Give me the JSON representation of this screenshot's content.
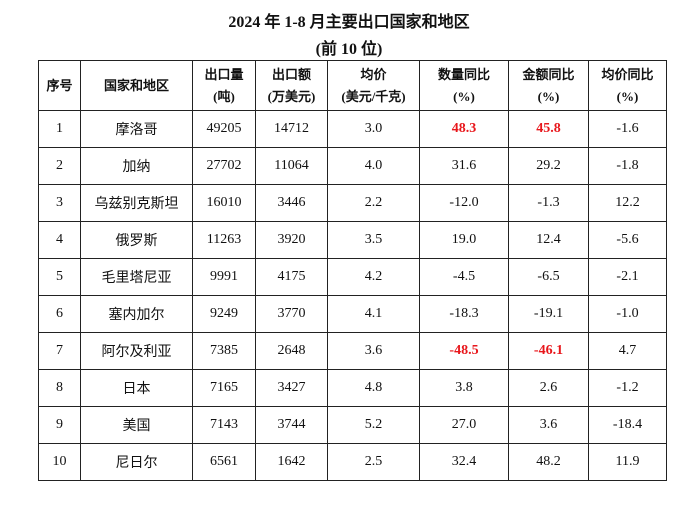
{
  "header": {
    "title": "2024 年 1-8 月主要出口国家和地区",
    "subtitle": "(前 10 位)"
  },
  "table": {
    "columns": [
      [
        "序号"
      ],
      [
        "国家和地区"
      ],
      [
        "出口量",
        "(吨)"
      ],
      [
        "出口额",
        "(万美元)"
      ],
      [
        "均价",
        "(美元/千克)"
      ],
      [
        "数量同比",
        "(%)"
      ],
      [
        "金额同比",
        "(%)"
      ],
      [
        "均价同比",
        "(%)"
      ]
    ],
    "rows": [
      [
        "1",
        "摩洛哥",
        "49205",
        "14712",
        "3.0",
        "48.3",
        "45.8",
        "-1.6"
      ],
      [
        "2",
        "加纳",
        "27702",
        "11064",
        "4.0",
        "31.6",
        "29.2",
        "-1.8"
      ],
      [
        "3",
        "乌兹别克斯坦",
        "16010",
        "3446",
        "2.2",
        "-12.0",
        "-1.3",
        "12.2"
      ],
      [
        "4",
        "俄罗斯",
        "11263",
        "3920",
        "3.5",
        "19.0",
        "12.4",
        "-5.6"
      ],
      [
        "5",
        "毛里塔尼亚",
        "9991",
        "4175",
        "4.2",
        "-4.5",
        "-6.5",
        "-2.1"
      ],
      [
        "6",
        "塞内加尔",
        "9249",
        "3770",
        "4.1",
        "-18.3",
        "-19.1",
        "-1.0"
      ],
      [
        "7",
        "阿尔及利亚",
        "7385",
        "2648",
        "3.6",
        "-48.5",
        "-46.1",
        "4.7"
      ],
      [
        "8",
        "日本",
        "7165",
        "3427",
        "4.8",
        "3.8",
        "2.6",
        "-1.2"
      ],
      [
        "9",
        "美国",
        "7143",
        "3744",
        "5.2",
        "27.0",
        "3.6",
        "-18.4"
      ],
      [
        "10",
        "尼日尔",
        "6561",
        "1642",
        "2.5",
        "32.4",
        "48.2",
        "11.9"
      ]
    ]
  }
}
